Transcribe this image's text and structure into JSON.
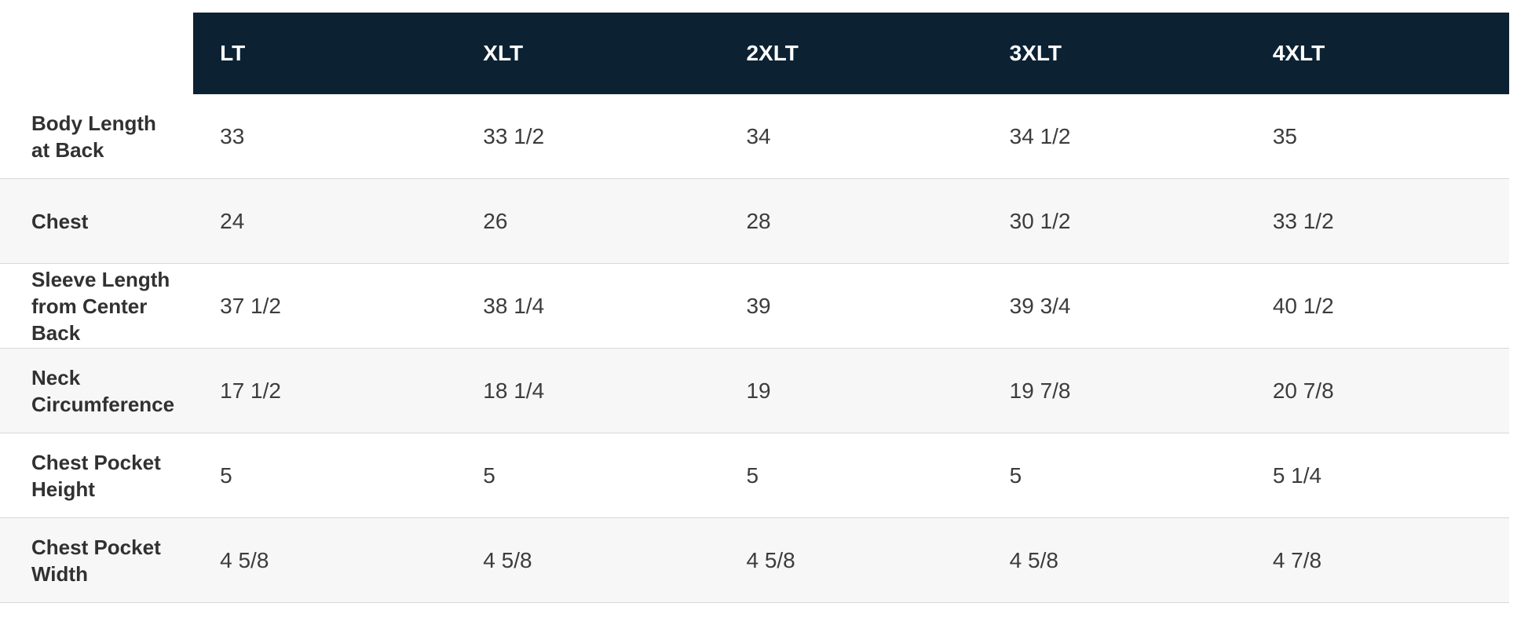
{
  "table": {
    "columns": [
      "LT",
      "XLT",
      "2XLT",
      "3XLT",
      "4XLT"
    ],
    "rows": [
      {
        "label": "Body Length\nat Back",
        "values": [
          "33",
          "33 1/2",
          "34",
          "34 1/2",
          "35"
        ]
      },
      {
        "label": "Chest",
        "values": [
          "24",
          "26",
          "28",
          "30 1/2",
          "33 1/2"
        ]
      },
      {
        "label": "Sleeve Length\nfrom Center\nBack",
        "values": [
          "37 1/2",
          "38 1/4",
          "39",
          "39 3/4",
          "40 1/2"
        ]
      },
      {
        "label": "Neck\nCircumference",
        "values": [
          "17 1/2",
          "18 1/4",
          "19",
          "19 7/8",
          "20 7/8"
        ]
      },
      {
        "label": "Chest Pocket\nHeight",
        "values": [
          "5",
          "5",
          "5",
          "5",
          "5 1/4"
        ]
      },
      {
        "label": "Chest Pocket\nWidth",
        "values": [
          "4 5/8",
          "4 5/8",
          "4 5/8",
          "4 5/8",
          "4 7/8"
        ]
      }
    ],
    "colors": {
      "header_bg": "#0c2233",
      "header_text": "#ffffff",
      "row_alt_bg": "#f7f7f7",
      "divider": "#d8d8d8",
      "label_text": "#313131",
      "value_text": "#3c3c3c",
      "page_bg": "#ffffff"
    }
  },
  "chart_data": {
    "type": "table",
    "columns": [
      "LT",
      "XLT",
      "2XLT",
      "3XLT",
      "4XLT"
    ],
    "row_labels": [
      "Body Length at Back",
      "Chest",
      "Sleeve Length from Center Back",
      "Neck Circumference",
      "Chest Pocket Height",
      "Chest Pocket Width"
    ],
    "rows": [
      [
        "33",
        "33 1/2",
        "34",
        "34 1/2",
        "35"
      ],
      [
        "24",
        "26",
        "28",
        "30 1/2",
        "33 1/2"
      ],
      [
        "37 1/2",
        "38 1/4",
        "39",
        "39 3/4",
        "40 1/2"
      ],
      [
        "17 1/2",
        "18 1/4",
        "19",
        "19 7/8",
        "20 7/8"
      ],
      [
        "5",
        "5",
        "5",
        "5",
        "5 1/4"
      ],
      [
        "4 5/8",
        "4 5/8",
        "4 5/8",
        "4 5/8",
        "4 7/8"
      ]
    ]
  }
}
